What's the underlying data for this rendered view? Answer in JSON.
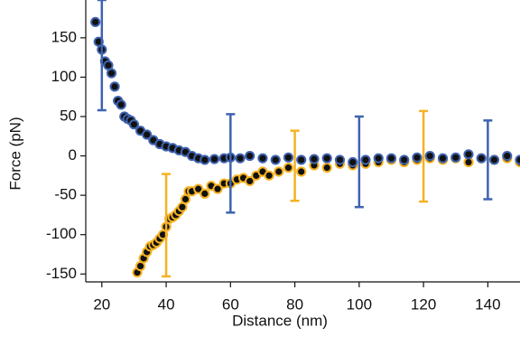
{
  "chart_data": {
    "type": "scatter",
    "xlabel": "Distance (nm)",
    "ylabel": "Force (pN)",
    "xlim": [
      15,
      150
    ],
    "ylim": [
      -160,
      198
    ],
    "xticks": [
      20,
      40,
      60,
      80,
      100,
      120,
      140
    ],
    "yticks": [
      -150,
      -100,
      -50,
      0,
      50,
      100,
      150
    ],
    "marker_fill": "#111111",
    "series": [
      {
        "color": "#f4b223",
        "x": [
          31,
          32,
          33,
          34,
          35,
          36,
          37,
          38,
          39,
          40,
          41,
          42,
          43,
          44,
          45,
          46,
          47,
          48,
          50,
          52,
          54,
          56,
          58,
          60,
          62,
          64,
          66,
          68,
          70,
          72,
          75,
          78,
          82,
          86,
          90,
          94,
          98,
          102,
          106,
          110,
          114,
          118,
          122,
          126,
          130,
          134,
          138,
          142,
          146,
          150
        ],
        "values": [
          -148,
          -140,
          -130,
          -122,
          -115,
          -113,
          -110,
          -105,
          -100,
          -90,
          -80,
          -78,
          -75,
          -70,
          -65,
          -55,
          -45,
          -45,
          -42,
          -48,
          -38,
          -42,
          -35,
          -35,
          -30,
          -28,
          -32,
          -25,
          -20,
          -25,
          -20,
          -15,
          -20,
          -12,
          -15,
          -10,
          -12,
          -10,
          -8,
          -5,
          -8,
          -5,
          -3,
          -5,
          -3,
          -8,
          -3,
          -5,
          -3,
          -8
        ],
        "err_x": [
          40,
          80,
          120
        ],
        "err_high": [
          -23,
          32,
          57
        ],
        "err_low": [
          -153,
          -57,
          -58
        ]
      },
      {
        "color": "#3f63b0",
        "x": [
          18,
          19,
          20,
          21,
          22,
          23,
          24,
          25,
          26,
          27,
          28,
          29,
          30,
          32,
          34,
          36,
          38,
          40,
          42,
          44,
          46,
          48,
          50,
          52,
          55,
          58,
          60,
          63,
          66,
          70,
          74,
          78,
          82,
          86,
          90,
          94,
          98,
          102,
          106,
          110,
          114,
          118,
          122,
          126,
          130,
          134,
          138,
          142,
          146,
          150
        ],
        "values": [
          170,
          145,
          135,
          120,
          115,
          105,
          88,
          70,
          65,
          50,
          47,
          45,
          40,
          32,
          27,
          20,
          15,
          12,
          10,
          7,
          5,
          0,
          -3,
          -5,
          -4,
          -3,
          -2,
          -3,
          0,
          -3,
          -5,
          -2,
          -5,
          -4,
          -3,
          -5,
          -8,
          -5,
          -3,
          -3,
          -5,
          -2,
          0,
          -3,
          -2,
          2,
          -3,
          -5,
          0,
          -5
        ],
        "err_x": [
          20,
          60,
          100,
          140
        ],
        "err_high": [
          198,
          53,
          50,
          45
        ],
        "err_low": [
          58,
          -72,
          -65,
          -55
        ]
      }
    ]
  }
}
